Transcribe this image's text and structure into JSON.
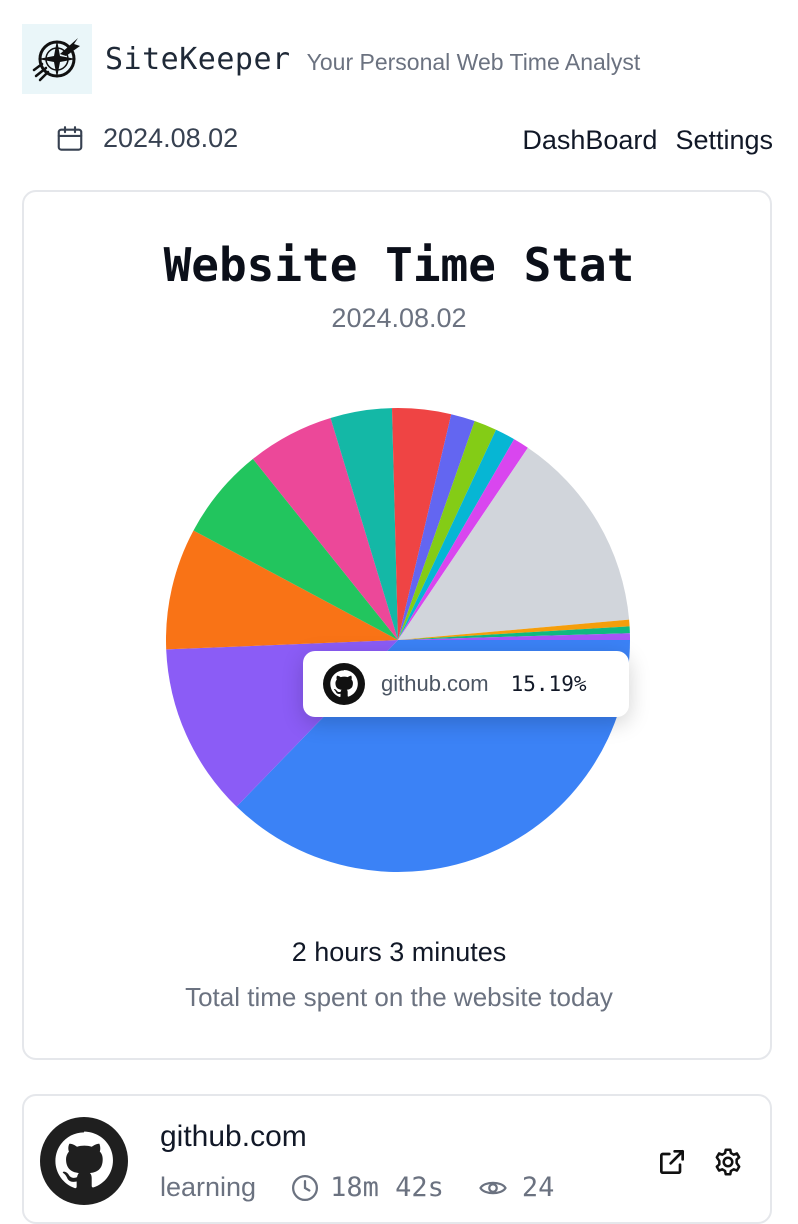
{
  "app": {
    "name": "SiteKeeper",
    "tagline": "Your Personal Web Time Analyst",
    "logo_icon": "compass-plane-icon"
  },
  "datebar": {
    "date": "2024.08.02",
    "icon": "calendar-icon"
  },
  "nav": {
    "items": [
      "DashBoard",
      "Settings"
    ]
  },
  "stat_card": {
    "title": "Website Time Stat",
    "date": "2024.08.02",
    "total_time": "2 hours 3 minutes",
    "total_label": "Total time spent on the website today"
  },
  "tooltip": {
    "site": "github.com",
    "percent": "15.19%",
    "icon": "github-icon"
  },
  "chart_data": {
    "type": "pie",
    "highlighted_slice": "github.com",
    "slices": [
      {
        "label": "",
        "value": 40.0,
        "color": "#3b82f6"
      },
      {
        "label": "",
        "value": 13.0,
        "color": "#8b5cf6"
      },
      {
        "label": "",
        "value": 9.1,
        "color": "#f97316"
      },
      {
        "label": "",
        "value": 6.9,
        "color": "#22c55e"
      },
      {
        "label": "",
        "value": 6.5,
        "color": "#ec4899"
      },
      {
        "label": "",
        "value": 4.6,
        "color": "#14b8a6"
      },
      {
        "label": "",
        "value": 4.4,
        "color": "#ef4444"
      },
      {
        "label": "",
        "value": 1.8,
        "color": "#6366f1"
      },
      {
        "label": "",
        "value": 1.7,
        "color": "#84cc16"
      },
      {
        "label": "",
        "value": 1.5,
        "color": "#06b6d4"
      },
      {
        "label": "",
        "value": 1.2,
        "color": "#d946ef"
      },
      {
        "label": "github.com",
        "value": 15.19,
        "color": "#d1d5db"
      },
      {
        "label": "",
        "value": 0.5,
        "color": "#f59e0b"
      },
      {
        "label": "",
        "value": 0.5,
        "color": "#10b981"
      },
      {
        "label": "",
        "value": 0.5,
        "color": "#a855f7"
      }
    ]
  },
  "site_list": {
    "items": [
      {
        "site": "github.com",
        "category": "learning",
        "duration": "18m 42s",
        "visits": "24",
        "icon": "github-icon"
      }
    ]
  }
}
